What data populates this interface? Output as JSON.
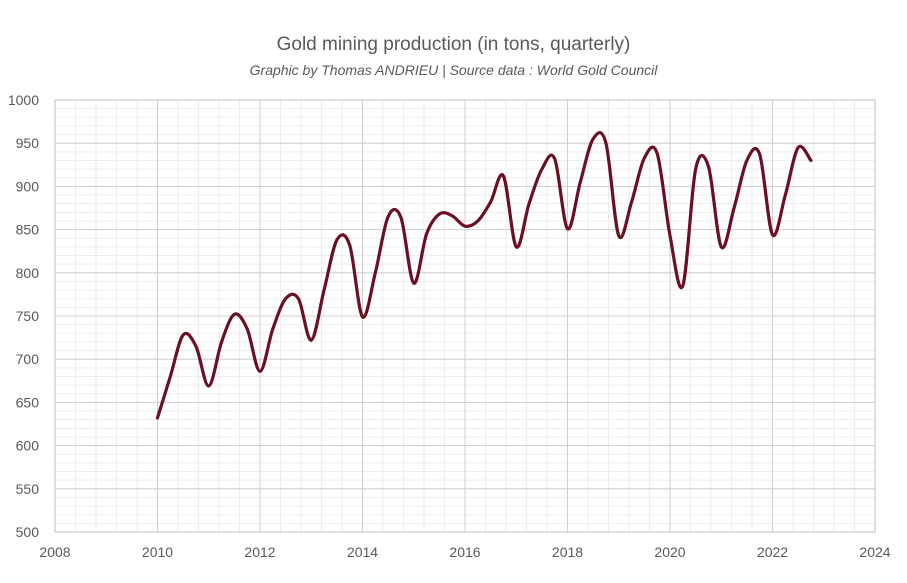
{
  "chart_data": {
    "type": "line",
    "title": "Gold mining production (in tons, quarterly)",
    "subtitle": "Graphic by Thomas ANDRIEU | Source data : World Gold Council",
    "xlabel": "",
    "ylabel": "",
    "xlim": [
      2008,
      2024
    ],
    "ylim": [
      500,
      1000
    ],
    "xticks": [
      2008,
      2010,
      2012,
      2014,
      2016,
      2018,
      2020,
      2022,
      2024
    ],
    "yticks": [
      500,
      550,
      600,
      650,
      700,
      750,
      800,
      850,
      900,
      950,
      1000
    ],
    "grid": true,
    "line_color": "#6b0f24",
    "series": [
      {
        "name": "",
        "x": [
          2010.0,
          2010.25,
          2010.5,
          2010.75,
          2011.0,
          2011.25,
          2011.5,
          2011.75,
          2012.0,
          2012.25,
          2012.5,
          2012.75,
          2013.0,
          2013.25,
          2013.5,
          2013.75,
          2014.0,
          2014.25,
          2014.5,
          2014.75,
          2015.0,
          2015.25,
          2015.5,
          2015.75,
          2016.0,
          2016.25,
          2016.5,
          2016.75,
          2017.0,
          2017.25,
          2017.5,
          2017.75,
          2018.0,
          2018.25,
          2018.5,
          2018.75,
          2019.0,
          2019.25,
          2019.5,
          2019.75,
          2020.0,
          2020.25,
          2020.5,
          2020.75,
          2021.0,
          2021.25,
          2021.5,
          2021.75,
          2022.0,
          2022.25,
          2022.5,
          2022.75
        ],
        "values": [
          632,
          680,
          728,
          715,
          669,
          720,
          752,
          735,
          686,
          735,
          770,
          770,
          722,
          780,
          838,
          832,
          749,
          800,
          865,
          864,
          788,
          845,
          868,
          866,
          854,
          860,
          882,
          912,
          830,
          880,
          920,
          932,
          851,
          905,
          955,
          950,
          843,
          882,
          933,
          938,
          843,
          785,
          920,
          923,
          830,
          875,
          930,
          937,
          844,
          890,
          945,
          930
        ]
      }
    ]
  }
}
